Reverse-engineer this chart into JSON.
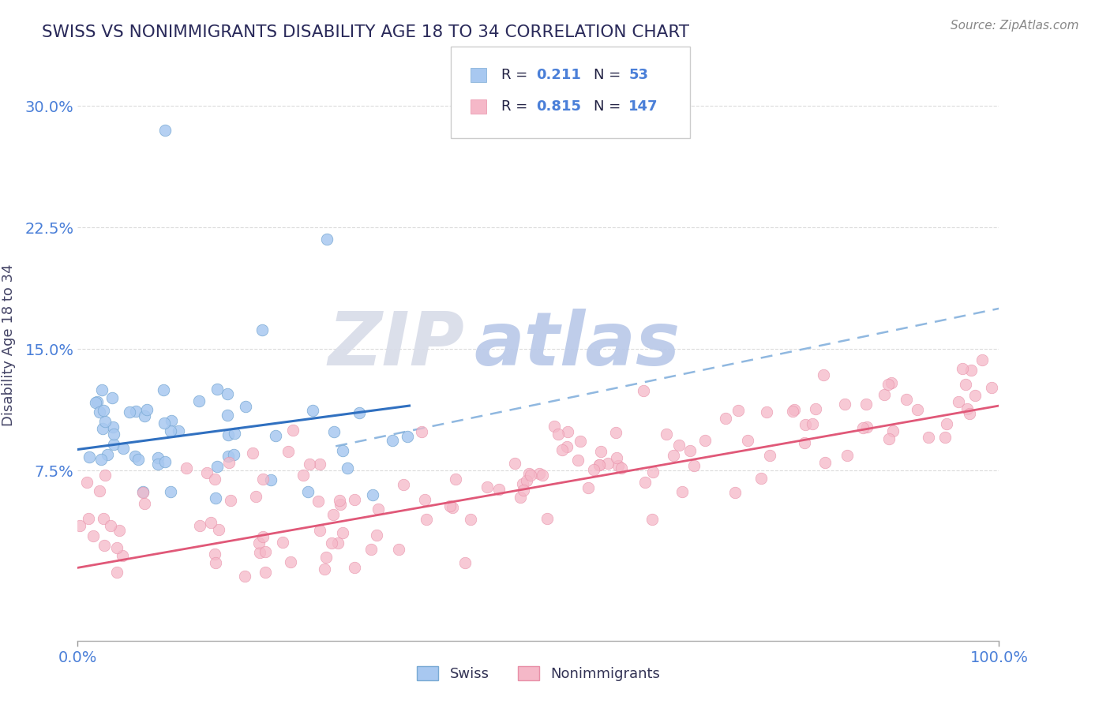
{
  "title": "SWISS VS NONIMMIGRANTS DISABILITY AGE 18 TO 34 CORRELATION CHART",
  "source": "Source: ZipAtlas.com",
  "ylabel": "Disability Age 18 to 34",
  "y_tick_labels": [
    "7.5%",
    "15.0%",
    "22.5%",
    "30.0%"
  ],
  "y_ticks": [
    0.075,
    0.15,
    0.225,
    0.3
  ],
  "xlim": [
    0.0,
    1.0
  ],
  "ylim": [
    -0.03,
    0.335
  ],
  "swiss_color": "#a8c8f0",
  "swiss_edge_color": "#7aaad4",
  "nonimm_color": "#f5b8c8",
  "nonimm_edge_color": "#e890a8",
  "swiss_line_color": "#3070c0",
  "nonimm_line_color": "#e05878",
  "dashed_line_color": "#90b8e0",
  "grid_color": "#cccccc",
  "title_color": "#2a2a5a",
  "axis_label_color": "#4a7fd8",
  "ylabel_color": "#444466",
  "source_color": "#888888",
  "watermark_zip_color": "#d8dce8",
  "watermark_atlas_color": "#b8c8e8",
  "swiss_R": 0.211,
  "swiss_N": 53,
  "nonimm_R": 0.815,
  "nonimm_N": 147,
  "swiss_line_x0": 0.0,
  "swiss_line_x1": 0.36,
  "swiss_line_y0": 0.088,
  "swiss_line_y1": 0.115,
  "dashed_line_x0": 0.28,
  "dashed_line_x1": 1.0,
  "dashed_line_y0": 0.09,
  "dashed_line_y1": 0.175,
  "nonimm_line_x0": 0.0,
  "nonimm_line_x1": 1.0,
  "nonimm_line_y0": 0.015,
  "nonimm_line_y1": 0.115,
  "background_color": "#ffffff"
}
